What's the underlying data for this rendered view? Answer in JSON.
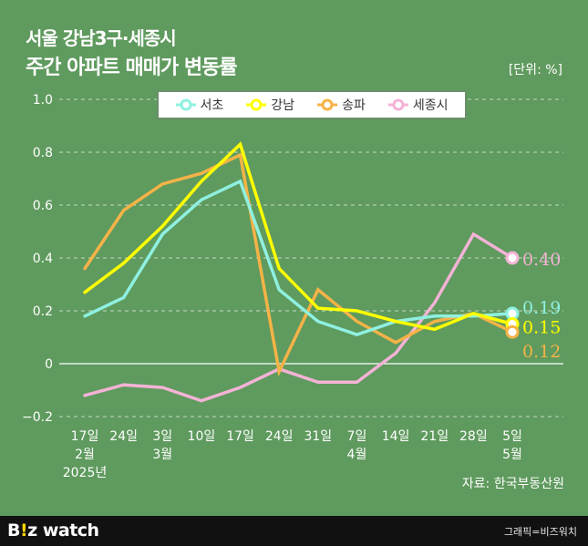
{
  "header": {
    "title_line1": "서울 강남3구·세종시",
    "title_line2": "주간 아파트 매매가 변동률",
    "unit": "[단위: %]"
  },
  "source": "자료: 한국부동산원",
  "footer": {
    "logo_part1": "B",
    "logo_accent": "!",
    "logo_part2": "z watch",
    "credit": "그래픽=비즈워치"
  },
  "chart_data": {
    "type": "line",
    "title": "주간 아파트 매매가 변동률",
    "ylim": [
      -0.2,
      1.0
    ],
    "y_ticks": [
      -0.2,
      0,
      0.2,
      0.4,
      0.6,
      0.8,
      1.0
    ],
    "y_tick_labels": [
      "−0.2",
      "0",
      "0.2",
      "0.4",
      "0.6",
      "0.8",
      "1.0"
    ],
    "grid": true,
    "categories": [
      "17일",
      "24일",
      "3일",
      "10일",
      "17일",
      "24일",
      "31일",
      "7일",
      "14일",
      "21일",
      "28일",
      "5일"
    ],
    "month_labels": [
      "2월",
      "",
      "3월",
      "",
      "",
      "",
      "",
      "4월",
      "",
      "",
      "",
      "5월"
    ],
    "year_label": "2025년",
    "series": [
      {
        "name": "서초",
        "color": "#8ff0e0",
        "values": [
          0.18,
          0.25,
          0.49,
          0.62,
          0.69,
          0.28,
          0.16,
          0.11,
          0.16,
          0.18,
          0.18,
          0.19
        ],
        "end_label": "0.19"
      },
      {
        "name": "강남",
        "color": "#ffff00",
        "values": [
          0.27,
          0.38,
          0.52,
          0.69,
          0.83,
          0.36,
          0.21,
          0.2,
          0.16,
          0.13,
          0.19,
          0.15
        ],
        "end_label": "0.15"
      },
      {
        "name": "송파",
        "color": "#f5b347",
        "values": [
          0.36,
          0.58,
          0.68,
          0.72,
          0.79,
          -0.03,
          0.28,
          0.16,
          0.08,
          0.16,
          0.19,
          0.12
        ],
        "end_label": "0.12"
      },
      {
        "name": "세종시",
        "color": "#f4b3d6",
        "values": [
          -0.12,
          -0.08,
          -0.09,
          -0.14,
          -0.09,
          -0.02,
          -0.07,
          -0.07,
          0.04,
          0.23,
          0.49,
          0.4
        ],
        "end_label": "0.40"
      }
    ]
  }
}
